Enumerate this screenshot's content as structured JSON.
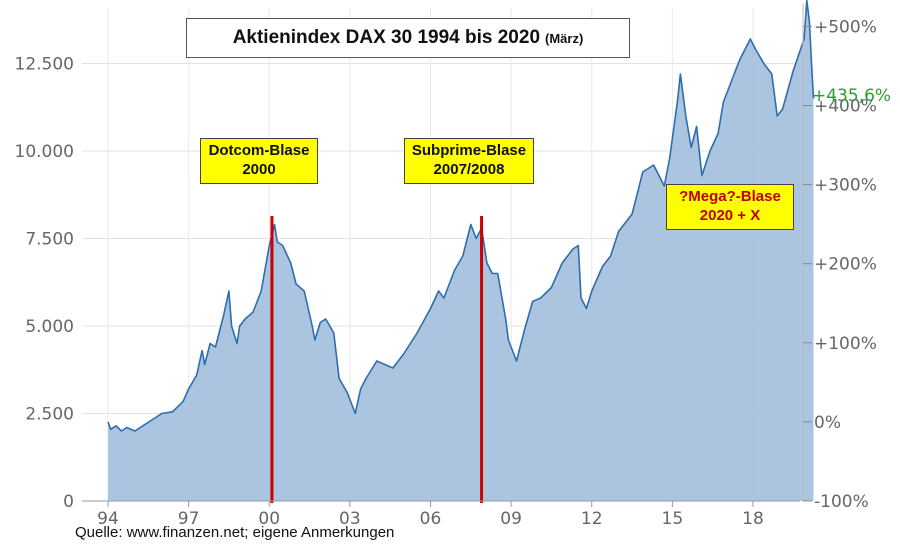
{
  "chart_data": {
    "type": "area",
    "title": "Aktienindex DAX 30 1994 bis 2020",
    "title_suffix": "(März)",
    "x_tick_labels": [
      "94",
      "97",
      "00",
      "03",
      "06",
      "09",
      "12",
      "15",
      "18"
    ],
    "x_tick_years": [
      1994,
      1997,
      2000,
      2003,
      2006,
      2009,
      2012,
      2015,
      2018
    ],
    "y_tick_labels": [
      "0",
      "2.500",
      "5.000",
      "7.500",
      "10.000",
      "12.500"
    ],
    "y_tick_values": [
      0,
      2500,
      5000,
      7500,
      10000,
      12500
    ],
    "ylim": [
      0,
      14400
    ],
    "right_axis_labels": [
      "-100%",
      "0%",
      "+100%",
      "+200%",
      "+300%",
      "+400%",
      "+500%"
    ],
    "right_axis_base": 2260,
    "highlight_value": "+435,6%",
    "series": [
      {
        "values_x": [
          1994.0,
          1994.1,
          1994.3,
          1994.5,
          1994.7,
          1995.0,
          1995.3,
          1995.6,
          1996.0,
          1996.4,
          1996.8,
          1997.0,
          1997.3,
          1997.5,
          1997.6,
          1997.8,
          1998.0,
          1998.3,
          1998.5,
          1998.6,
          1998.8,
          1998.9,
          1999.1,
          1999.4,
          1999.7,
          2000.0,
          2000.2,
          2000.3,
          2000.5,
          2000.8,
          2001.0,
          2001.3,
          2001.6,
          2001.7,
          2001.9,
          2002.1,
          2002.4,
          2002.6,
          2002.9,
          2003.1,
          2003.2,
          2003.4,
          2003.6,
          2004.0,
          2004.3,
          2004.6,
          2005.0,
          2005.5,
          2006.0,
          2006.3,
          2006.5,
          2006.9,
          2007.2,
          2007.5,
          2007.7,
          2007.9,
          2008.1,
          2008.3,
          2008.5,
          2008.8,
          2008.9,
          2009.1,
          2009.2,
          2009.5,
          2009.8,
          2010.1,
          2010.5,
          2010.9,
          2011.3,
          2011.5,
          2011.6,
          2011.8,
          2012.0,
          2012.4,
          2012.7,
          2013.0,
          2013.5,
          2013.9,
          2014.3,
          2014.7,
          2014.9,
          2015.2,
          2015.3,
          2015.5,
          2015.7,
          2015.9,
          2016.1,
          2016.4,
          2016.7,
          2016.9,
          2017.2,
          2017.5,
          2017.9,
          2018.1,
          2018.4,
          2018.7,
          2018.9,
          2019.1,
          2019.5,
          2019.9,
          2020.0,
          2020.1,
          2020.2,
          2020.25
        ],
        "values_y": [
          2260,
          2050,
          2150,
          2000,
          2100,
          2000,
          2150,
          2300,
          2500,
          2550,
          2850,
          3200,
          3600,
          4300,
          3900,
          4500,
          4400,
          5300,
          6000,
          5000,
          4500,
          5000,
          5200,
          5400,
          6000,
          7300,
          7900,
          7400,
          7300,
          6800,
          6200,
          6000,
          5000,
          4600,
          5100,
          5200,
          4800,
          3500,
          3100,
          2700,
          2500,
          3200,
          3500,
          4000,
          3900,
          3800,
          4200,
          4800,
          5500,
          6000,
          5800,
          6600,
          7000,
          7900,
          7500,
          7800,
          6800,
          6500,
          6500,
          5200,
          4600,
          4200,
          4000,
          4900,
          5700,
          5800,
          6100,
          6800,
          7200,
          7300,
          5800,
          5500,
          6000,
          6700,
          7000,
          7700,
          8200,
          9400,
          9600,
          9000,
          9800,
          11500,
          12200,
          11000,
          10100,
          10700,
          9300,
          10000,
          10500,
          11400,
          12000,
          12600,
          13200,
          12900,
          12500,
          12200,
          11000,
          11200,
          12300,
          13200,
          14300,
          13700,
          12200,
          11500
        ]
      }
    ],
    "annotations": [
      {
        "name": "dotcom",
        "line1": "Dotcom-Blase",
        "line2": "2000",
        "year": 2000.1
      },
      {
        "name": "subprime",
        "line1": "Subprime-Blase",
        "line2": "2007/2008",
        "year": 2007.9
      },
      {
        "name": "mega",
        "line1": "?Mega?-Blase",
        "line2": "2020 + X"
      }
    ],
    "colors": {
      "fill": "#a7c2de",
      "line": "#2e6eae",
      "marker": "#cc0000",
      "note_bg": "#ffff00",
      "highlight": "#2e9b2e"
    }
  },
  "footer": {
    "source": "Quelle: www.finanzen.net; eigene Anmerkungen"
  }
}
